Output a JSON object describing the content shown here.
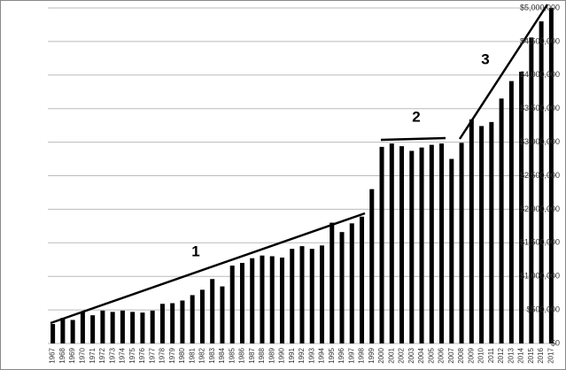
{
  "chart_data": {
    "type": "bar",
    "categories": [
      "1967",
      "1968",
      "1969",
      "1970",
      "1971",
      "1972",
      "1973",
      "1974",
      "1975",
      "1976",
      "1977",
      "1978",
      "1979",
      "1980",
      "1981",
      "1982",
      "1983",
      "1984",
      "1985",
      "1986",
      "1987",
      "1988",
      "1989",
      "1990",
      "1991",
      "1992",
      "1993",
      "1994",
      "1995",
      "1996",
      "1997",
      "1998",
      "1999",
      "2000",
      "2001",
      "2002",
      "2003",
      "2004",
      "2005",
      "2006",
      "2007",
      "2008",
      "2009",
      "2010",
      "2011",
      "2012",
      "2013",
      "2014",
      "2015",
      "2016",
      "2017"
    ],
    "values": [
      290000,
      380000,
      350000,
      470000,
      420000,
      490000,
      470000,
      490000,
      470000,
      460000,
      490000,
      590000,
      600000,
      640000,
      720000,
      800000,
      960000,
      850000,
      1160000,
      1200000,
      1270000,
      1310000,
      1300000,
      1280000,
      1410000,
      1450000,
      1410000,
      1460000,
      1800000,
      1660000,
      1790000,
      1890000,
      2300000,
      2930000,
      2980000,
      2940000,
      2870000,
      2920000,
      2960000,
      2980000,
      2750000,
      2990000,
      3340000,
      3240000,
      3300000,
      3650000,
      3910000,
      4050000,
      4560000,
      4800000,
      5000000
    ],
    "color": "#000000",
    "ylim": [
      0,
      5000000
    ],
    "yticks": [
      {
        "value": 0,
        "label": "$0"
      },
      {
        "value": 500000,
        "label": "$500,000"
      },
      {
        "value": 1000000,
        "label": "$1,000,000"
      },
      {
        "value": 1500000,
        "label": "$1,500,000"
      },
      {
        "value": 2000000,
        "label": "$2,000,000"
      },
      {
        "value": 2500000,
        "label": "$2,500,000"
      },
      {
        "value": 3000000,
        "label": "$3,000,000"
      },
      {
        "value": 3500000,
        "label": "$3,500,000"
      },
      {
        "value": 4000000,
        "label": "$4,000,000"
      },
      {
        "value": 4500000,
        "label": "$4,500,000"
      },
      {
        "value": 5000000,
        "label": "$5,000,000"
      }
    ],
    "grid": true,
    "annotations": [
      "1",
      "2",
      "3"
    ]
  }
}
